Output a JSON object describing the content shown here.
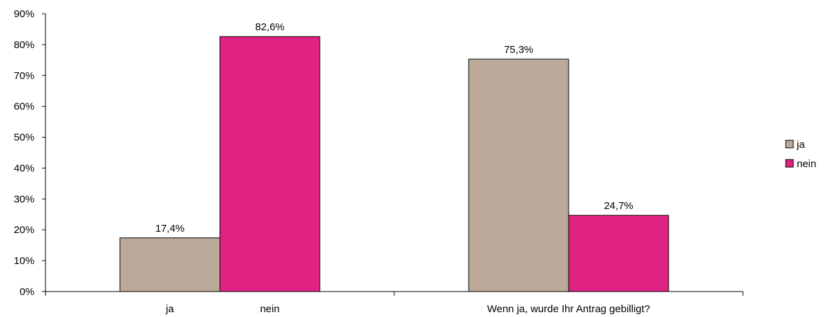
{
  "chart_data": {
    "type": "bar",
    "title": "",
    "xlabel": "",
    "ylabel": "",
    "ylim": [
      0,
      90
    ],
    "yticks": [
      0,
      10,
      20,
      30,
      40,
      50,
      60,
      70,
      80,
      90
    ],
    "ytick_labels": [
      "0%",
      "10%",
      "20%",
      "30%",
      "40%",
      "50%",
      "60%",
      "70%",
      "80%",
      "90%"
    ],
    "category_groups": [
      {
        "labels": [
          "ja",
          "nein"
        ]
      },
      {
        "labels": [
          "Wenn ja, wurde Ihr Antrag gebilligt?"
        ]
      }
    ],
    "series": [
      {
        "name": "ja",
        "color": "#bba99a",
        "values": [
          17.4,
          75.3
        ],
        "labels": [
          "17,4%",
          "75,3%"
        ]
      },
      {
        "name": "nein",
        "color": "#e02383",
        "values": [
          82.6,
          24.7
        ],
        "labels": [
          "82,6%",
          "24,7%"
        ]
      }
    ],
    "grid": false,
    "legend": "right"
  }
}
